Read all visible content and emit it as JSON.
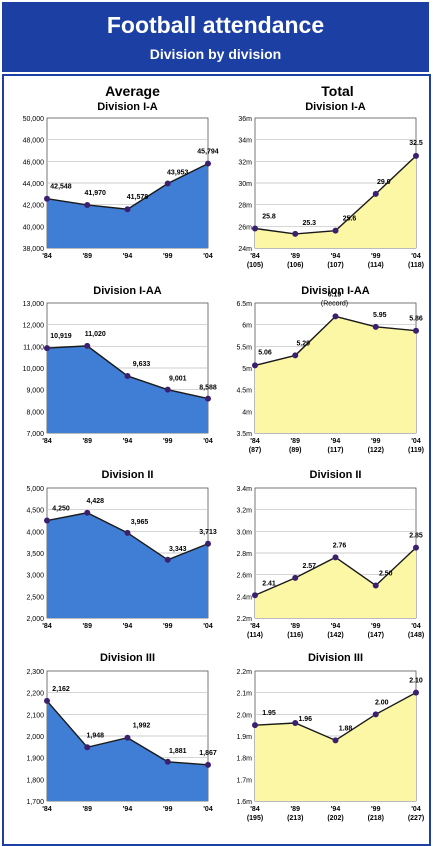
{
  "header": {
    "title": "Football attendance",
    "subtitle": "Division by division"
  },
  "columns": {
    "left": "Average",
    "right": "Total"
  },
  "colors": {
    "header": "#1c3fa4",
    "avg_fill": "#3f7ed4",
    "total_fill": "#fbf7a4",
    "line": "#1a1a1a",
    "point": "#3b2070"
  },
  "chart_data": [
    {
      "id": "avg-1a",
      "type": "area",
      "title": "Division I-A",
      "x": [
        "'84",
        "'89",
        "'94",
        "'99",
        "'04"
      ],
      "values": [
        42548,
        41970,
        41578,
        43953,
        45794
      ],
      "labels": [
        "42,548",
        "41,970",
        "41,578",
        "43,953",
        "45,794"
      ],
      "ylim": [
        38000,
        50000
      ],
      "yticks": [
        "38,000",
        "40,000",
        "42,000",
        "44,000",
        "46,000",
        "48,000",
        "50,000"
      ]
    },
    {
      "id": "tot-1a",
      "type": "area",
      "title": "Division I-A",
      "x": [
        "'84",
        "'89",
        "'94",
        "'99",
        "'04"
      ],
      "sublabels": [
        "(105)",
        "(106)",
        "(107)",
        "(114)",
        "(118)"
      ],
      "values": [
        25.8,
        25.3,
        25.6,
        29.0,
        32.5
      ],
      "labels": [
        "25.8",
        "25.3",
        "25.6",
        "29.0",
        "32.5"
      ],
      "ylim": [
        24,
        36
      ],
      "yticks": [
        "24m",
        "26m",
        "28m",
        "30m",
        "32m",
        "34m",
        "36m"
      ]
    },
    {
      "id": "avg-1aa",
      "type": "area",
      "title": "Division I-AA",
      "x": [
        "'84",
        "'89",
        "'94",
        "'99",
        "'04"
      ],
      "values": [
        10919,
        11020,
        9633,
        9001,
        8588
      ],
      "labels": [
        "10,919",
        "11,020",
        "9,633",
        "9,001",
        "8,588"
      ],
      "ylim": [
        7000,
        13000
      ],
      "yticks": [
        "7,000",
        "8,000",
        "9,000",
        "10,000",
        "11,000",
        "12,000",
        "13,000"
      ]
    },
    {
      "id": "tot-1aa",
      "type": "area",
      "title": "Division I-AA",
      "x": [
        "'84",
        "'89",
        "'94",
        "'99",
        "'04"
      ],
      "sublabels": [
        "(87)",
        "(89)",
        "(117)",
        "(122)",
        "(119)"
      ],
      "values": [
        5.06,
        5.29,
        6.19,
        5.95,
        5.86
      ],
      "labels": [
        "5.06",
        "5.29",
        "6.19",
        "5.95",
        "5.86"
      ],
      "annotation": "(Record)",
      "ylim": [
        3.5,
        6.5
      ],
      "yticks": [
        "3.5m",
        "4m",
        "4.5m",
        "5m",
        "5.5m",
        "6m",
        "6.5m"
      ]
    },
    {
      "id": "avg-2",
      "type": "area",
      "title": "Division II",
      "x": [
        "'84",
        "'89",
        "'94",
        "'99",
        "'04"
      ],
      "values": [
        4250,
        4428,
        3965,
        3343,
        3713
      ],
      "labels": [
        "4,250",
        "4,428",
        "3,965",
        "3,343",
        "3,713"
      ],
      "ylim": [
        2000,
        5000
      ],
      "yticks": [
        "2,000",
        "2,500",
        "3,000",
        "3,500",
        "4,000",
        "4,500",
        "5,000"
      ]
    },
    {
      "id": "tot-2",
      "type": "area",
      "title": "Division II",
      "x": [
        "'84",
        "'89",
        "'94",
        "'99",
        "'04"
      ],
      "sublabels": [
        "(114)",
        "(116)",
        "(142)",
        "(147)",
        "(148)"
      ],
      "values": [
        2.41,
        2.57,
        2.76,
        2.5,
        2.85
      ],
      "labels": [
        "2.41",
        "2.57",
        "2.76",
        "2.50",
        "2.85"
      ],
      "ylim": [
        2.2,
        3.4
      ],
      "yticks": [
        "2.2m",
        "2.4m",
        "2.6m",
        "2.8m",
        "3.0m",
        "3.2m",
        "3.4m"
      ]
    },
    {
      "id": "avg-3",
      "type": "area",
      "title": "Division III",
      "x": [
        "'84",
        "'89",
        "'94",
        "'99",
        "'04"
      ],
      "values": [
        2162,
        1948,
        1992,
        1881,
        1867
      ],
      "labels": [
        "2,162",
        "1,948",
        "1,992",
        "1,881",
        "1,867"
      ],
      "ylim": [
        1700,
        2300
      ],
      "yticks": [
        "1,700",
        "1,800",
        "1,900",
        "2,000",
        "2,100",
        "2,200",
        "2,300"
      ]
    },
    {
      "id": "tot-3",
      "type": "area",
      "title": "Division III",
      "x": [
        "'84",
        "'89",
        "'94",
        "'99",
        "'04"
      ],
      "sublabels": [
        "(195)",
        "(213)",
        "(202)",
        "(218)",
        "(227)"
      ],
      "values": [
        1.95,
        1.96,
        1.88,
        2.0,
        2.1
      ],
      "labels": [
        "1.95",
        "1.96",
        "1.88",
        "2.00",
        "2.10"
      ],
      "ylim": [
        1.6,
        2.2
      ],
      "yticks": [
        "1.6m",
        "1.7m",
        "1.8m",
        "1.9m",
        "2.0m",
        "2.1m",
        "2.2m"
      ]
    }
  ]
}
